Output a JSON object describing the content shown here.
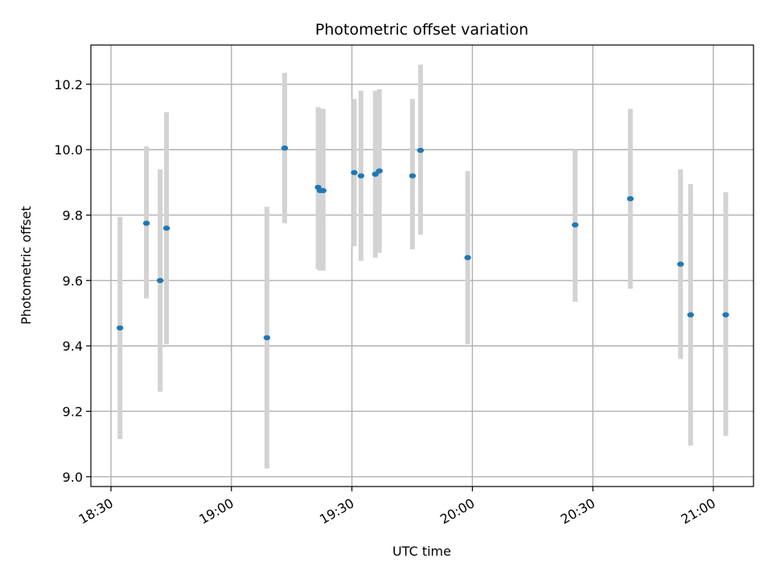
{
  "chart_data": {
    "type": "scatter",
    "title": "Photometric offset variation",
    "xlabel": "UTC time",
    "ylabel": "Photometric offset",
    "x_unit": "UTC time (HH:MM)",
    "xlim": [
      "18:25:00",
      "21:10:00"
    ],
    "ylim": [
      8.97,
      10.32
    ],
    "xticks": [
      "18:30",
      "19:00",
      "19:30",
      "20:00",
      "20:30",
      "21:00"
    ],
    "yticks": [
      9.0,
      9.2,
      9.4,
      9.6,
      9.8,
      10.0,
      10.2
    ],
    "ytick_labels": [
      "9.0",
      "9.2",
      "9.4",
      "9.6",
      "9.8",
      "10.0",
      "10.2"
    ],
    "grid": true,
    "legend": "none",
    "marker_color": "#1f77b4",
    "errorbar_color": "#d3d3d3",
    "series": [
      {
        "points": [
          {
            "x": "18:32:15",
            "y": 9.455,
            "ymin": 9.115,
            "ymax": 9.795
          },
          {
            "x": "18:38:50",
            "y": 9.775,
            "ymin": 9.545,
            "ymax": 10.01
          },
          {
            "x": "18:42:15",
            "y": 9.6,
            "ymin": 9.26,
            "ymax": 9.94
          },
          {
            "x": "18:43:50",
            "y": 9.76,
            "ymin": 9.405,
            "ymax": 10.115
          },
          {
            "x": "19:08:50",
            "y": 9.425,
            "ymin": 9.025,
            "ymax": 9.825
          },
          {
            "x": "19:13:15",
            "y": 10.005,
            "ymin": 9.775,
            "ymax": 10.235
          },
          {
            "x": "19:21:35",
            "y": 9.885,
            "ymin": 9.635,
            "ymax": 10.13
          },
          {
            "x": "19:22:05",
            "y": 9.875,
            "ymin": 9.63,
            "ymax": 10.125
          },
          {
            "x": "19:22:50",
            "y": 9.875,
            "ymin": 9.63,
            "ymax": 10.125
          },
          {
            "x": "19:30:35",
            "y": 9.93,
            "ymin": 9.705,
            "ymax": 10.155
          },
          {
            "x": "19:32:15",
            "y": 9.92,
            "ymin": 9.66,
            "ymax": 10.18
          },
          {
            "x": "19:35:50",
            "y": 9.925,
            "ymin": 9.67,
            "ymax": 10.18
          },
          {
            "x": "19:36:50",
            "y": 9.935,
            "ymin": 9.685,
            "ymax": 10.185
          },
          {
            "x": "19:45:05",
            "y": 9.92,
            "ymin": 9.695,
            "ymax": 10.155
          },
          {
            "x": "19:47:05",
            "y": 9.998,
            "ymin": 9.74,
            "ymax": 10.26
          },
          {
            "x": "19:58:50",
            "y": 9.67,
            "ymin": 9.405,
            "ymax": 9.935
          },
          {
            "x": "20:25:35",
            "y": 9.77,
            "ymin": 9.535,
            "ymax": 10.0
          },
          {
            "x": "20:39:20",
            "y": 9.85,
            "ymin": 9.575,
            "ymax": 10.125
          },
          {
            "x": "20:51:50",
            "y": 9.65,
            "ymin": 9.36,
            "ymax": 9.94
          },
          {
            "x": "20:54:20",
            "y": 9.495,
            "ymin": 9.095,
            "ymax": 9.895
          },
          {
            "x": "21:03:05",
            "y": 9.495,
            "ymin": 9.125,
            "ymax": 9.87
          }
        ]
      }
    ]
  }
}
